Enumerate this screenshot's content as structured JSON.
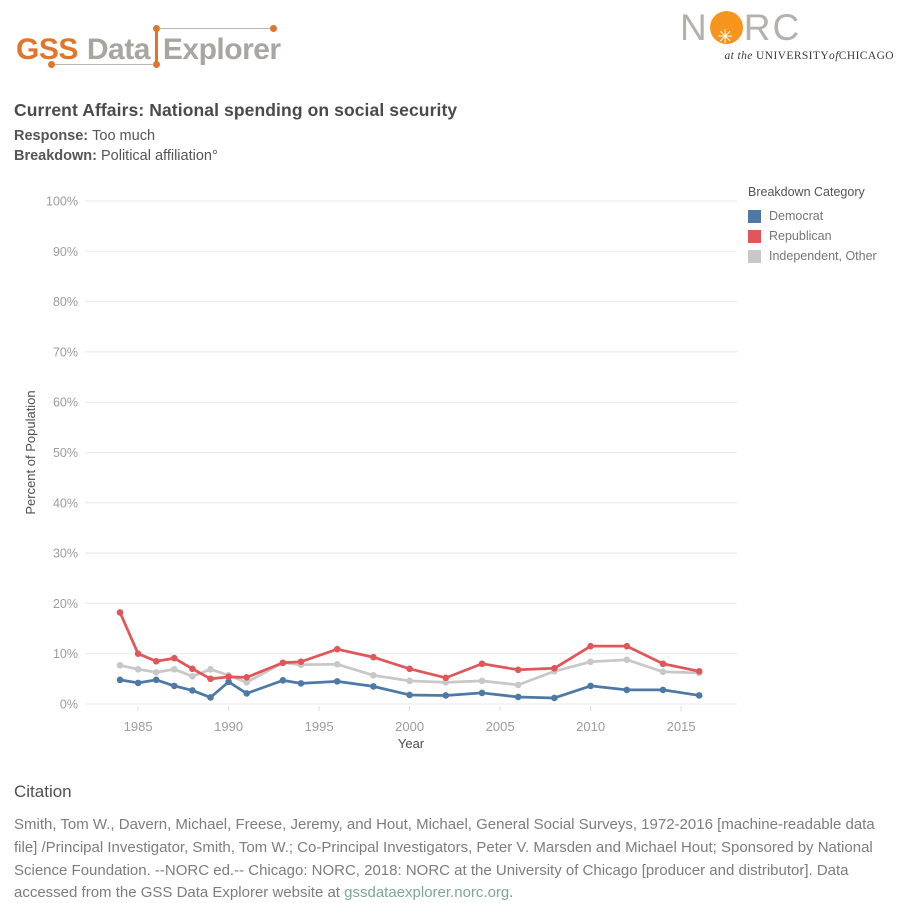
{
  "header": {
    "logo_gss": "GSS",
    "logo_data": "Data",
    "logo_explorer": "Explorer",
    "norc_n": "N",
    "norc_rc": "RC",
    "norc_star": "✳",
    "norc_tagline": {
      "at_the": "at the",
      "university": "UNIVERSITY",
      "of": "of",
      "chicago": "CHICAGO"
    },
    "colors": {
      "gss_orange": "#e0752c",
      "norc_orange": "#f5951e",
      "logo_gray": "#a9a6a2"
    }
  },
  "title": "Current Affairs: National spending on social security",
  "response_label": "Response:",
  "response_value": "Too much",
  "breakdown_label": "Breakdown:",
  "breakdown_value": "Political affiliation°",
  "chart_data": {
    "type": "line",
    "title": "Current Affairs: National spending on social security",
    "xlabel": "Year",
    "ylabel": "Percent of Population",
    "ylim": [
      0,
      100
    ],
    "grid": true,
    "legend_title": "Breakdown Category",
    "legend_position": "right",
    "yticks": [
      "0%",
      "10%",
      "20%",
      "30%",
      "40%",
      "50%",
      "60%",
      "70%",
      "80%",
      "90%",
      "100%"
    ],
    "xticks": [
      1985,
      1990,
      1995,
      2000,
      2005,
      2010,
      2015
    ],
    "x": [
      1984,
      1985,
      1986,
      1987,
      1988,
      1989,
      1990,
      1991,
      1993,
      1994,
      1996,
      1998,
      2000,
      2002,
      2004,
      2006,
      2008,
      2010,
      2012,
      2014,
      2016
    ],
    "series": [
      {
        "name": "Democrat",
        "color": "#4e79a7",
        "values": [
          4.8,
          4.2,
          4.8,
          3.6,
          2.7,
          1.3,
          4.4,
          2.1,
          4.7,
          4.1,
          4.5,
          3.5,
          1.8,
          1.7,
          2.2,
          1.4,
          1.2,
          3.6,
          2.8,
          2.8,
          1.7
        ]
      },
      {
        "name": "Republican",
        "color": "#e15759",
        "values": [
          18.2,
          10.0,
          8.5,
          9.1,
          7.0,
          5.0,
          5.4,
          5.3,
          8.2,
          8.4,
          10.9,
          9.3,
          7.0,
          5.2,
          8.0,
          6.8,
          7.1,
          11.5,
          11.5,
          8.0,
          6.5
        ]
      },
      {
        "name": "Independent, Other",
        "color": "#c8c8c8",
        "values": [
          7.7,
          6.9,
          6.3,
          6.9,
          5.5,
          6.9,
          5.7,
          4.3,
          8.2,
          7.8,
          7.9,
          5.7,
          4.6,
          4.3,
          4.6,
          3.8,
          6.5,
          8.4,
          8.8,
          6.4,
          6.2
        ]
      }
    ]
  },
  "citation": {
    "heading": "Citation",
    "text": "Smith, Tom W., Davern, Michael, Freese, Jeremy, and Hout, Michael, General Social Surveys, 1972-2016 [machine-readable data file] /Principal Investigator, Smith, Tom W.; Co-Principal Investigators, Peter V. Marsden and Michael Hout; Sponsored by National Science Foundation. --NORC ed.-- Chicago: NORC, 2018: NORC at the University of Chicago [producer and distributor]. Data accessed from the GSS Data Explorer website at ",
    "link_text": "gssdataexplorer.norc.org",
    "suffix": "."
  }
}
